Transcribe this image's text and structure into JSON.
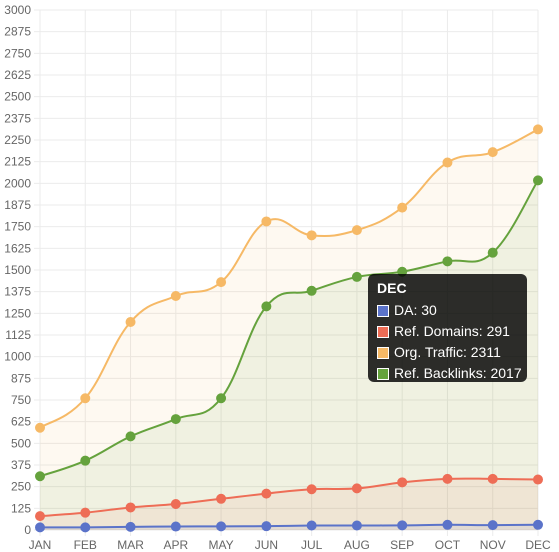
{
  "chart_data": {
    "type": "line",
    "categories": [
      "JAN",
      "FEB",
      "MAR",
      "APR",
      "MAY",
      "JUN",
      "JUL",
      "AUG",
      "SEP",
      "OCT",
      "NOV",
      "DEC"
    ],
    "ylim": [
      0,
      3000
    ],
    "yticks": [
      0,
      125,
      250,
      375,
      500,
      625,
      750,
      875,
      1000,
      1125,
      1250,
      1375,
      1500,
      1625,
      1750,
      1875,
      2000,
      2125,
      2250,
      2375,
      2500,
      2625,
      2750,
      2875,
      3000
    ],
    "grid": true,
    "series": [
      {
        "name": "DA",
        "color": "#5b73c9",
        "fill": true,
        "values": [
          15,
          15,
          18,
          20,
          21,
          22,
          26,
          26,
          27,
          30,
          28,
          30
        ]
      },
      {
        "name": "Ref. Domains",
        "color": "#ee6d56",
        "fill": true,
        "values": [
          80,
          100,
          130,
          150,
          180,
          210,
          235,
          240,
          275,
          295,
          295,
          291
        ]
      },
      {
        "name": "Org. Traffic",
        "color": "#f6b966",
        "fill": true,
        "values": [
          590,
          760,
          1200,
          1350,
          1430,
          1780,
          1700,
          1730,
          1860,
          2120,
          2180,
          2311
        ]
      },
      {
        "name": "Ref. Backlinks",
        "color": "#65a23d",
        "fill": true,
        "values": [
          310,
          400,
          540,
          640,
          760,
          1290,
          1380,
          1460,
          1490,
          1550,
          1600,
          2017
        ]
      }
    ],
    "tooltip": {
      "title": "DEC",
      "rows": [
        {
          "label": "DA:",
          "value": "30",
          "color": "#5b73c9"
        },
        {
          "label": "Ref. Domains:",
          "value": "291",
          "color": "#ee6d56"
        },
        {
          "label": "Org. Traffic:",
          "value": "2311",
          "color": "#f6b966"
        },
        {
          "label": "Ref. Backlinks:",
          "value": "2017",
          "color": "#65a23d"
        }
      ]
    }
  }
}
